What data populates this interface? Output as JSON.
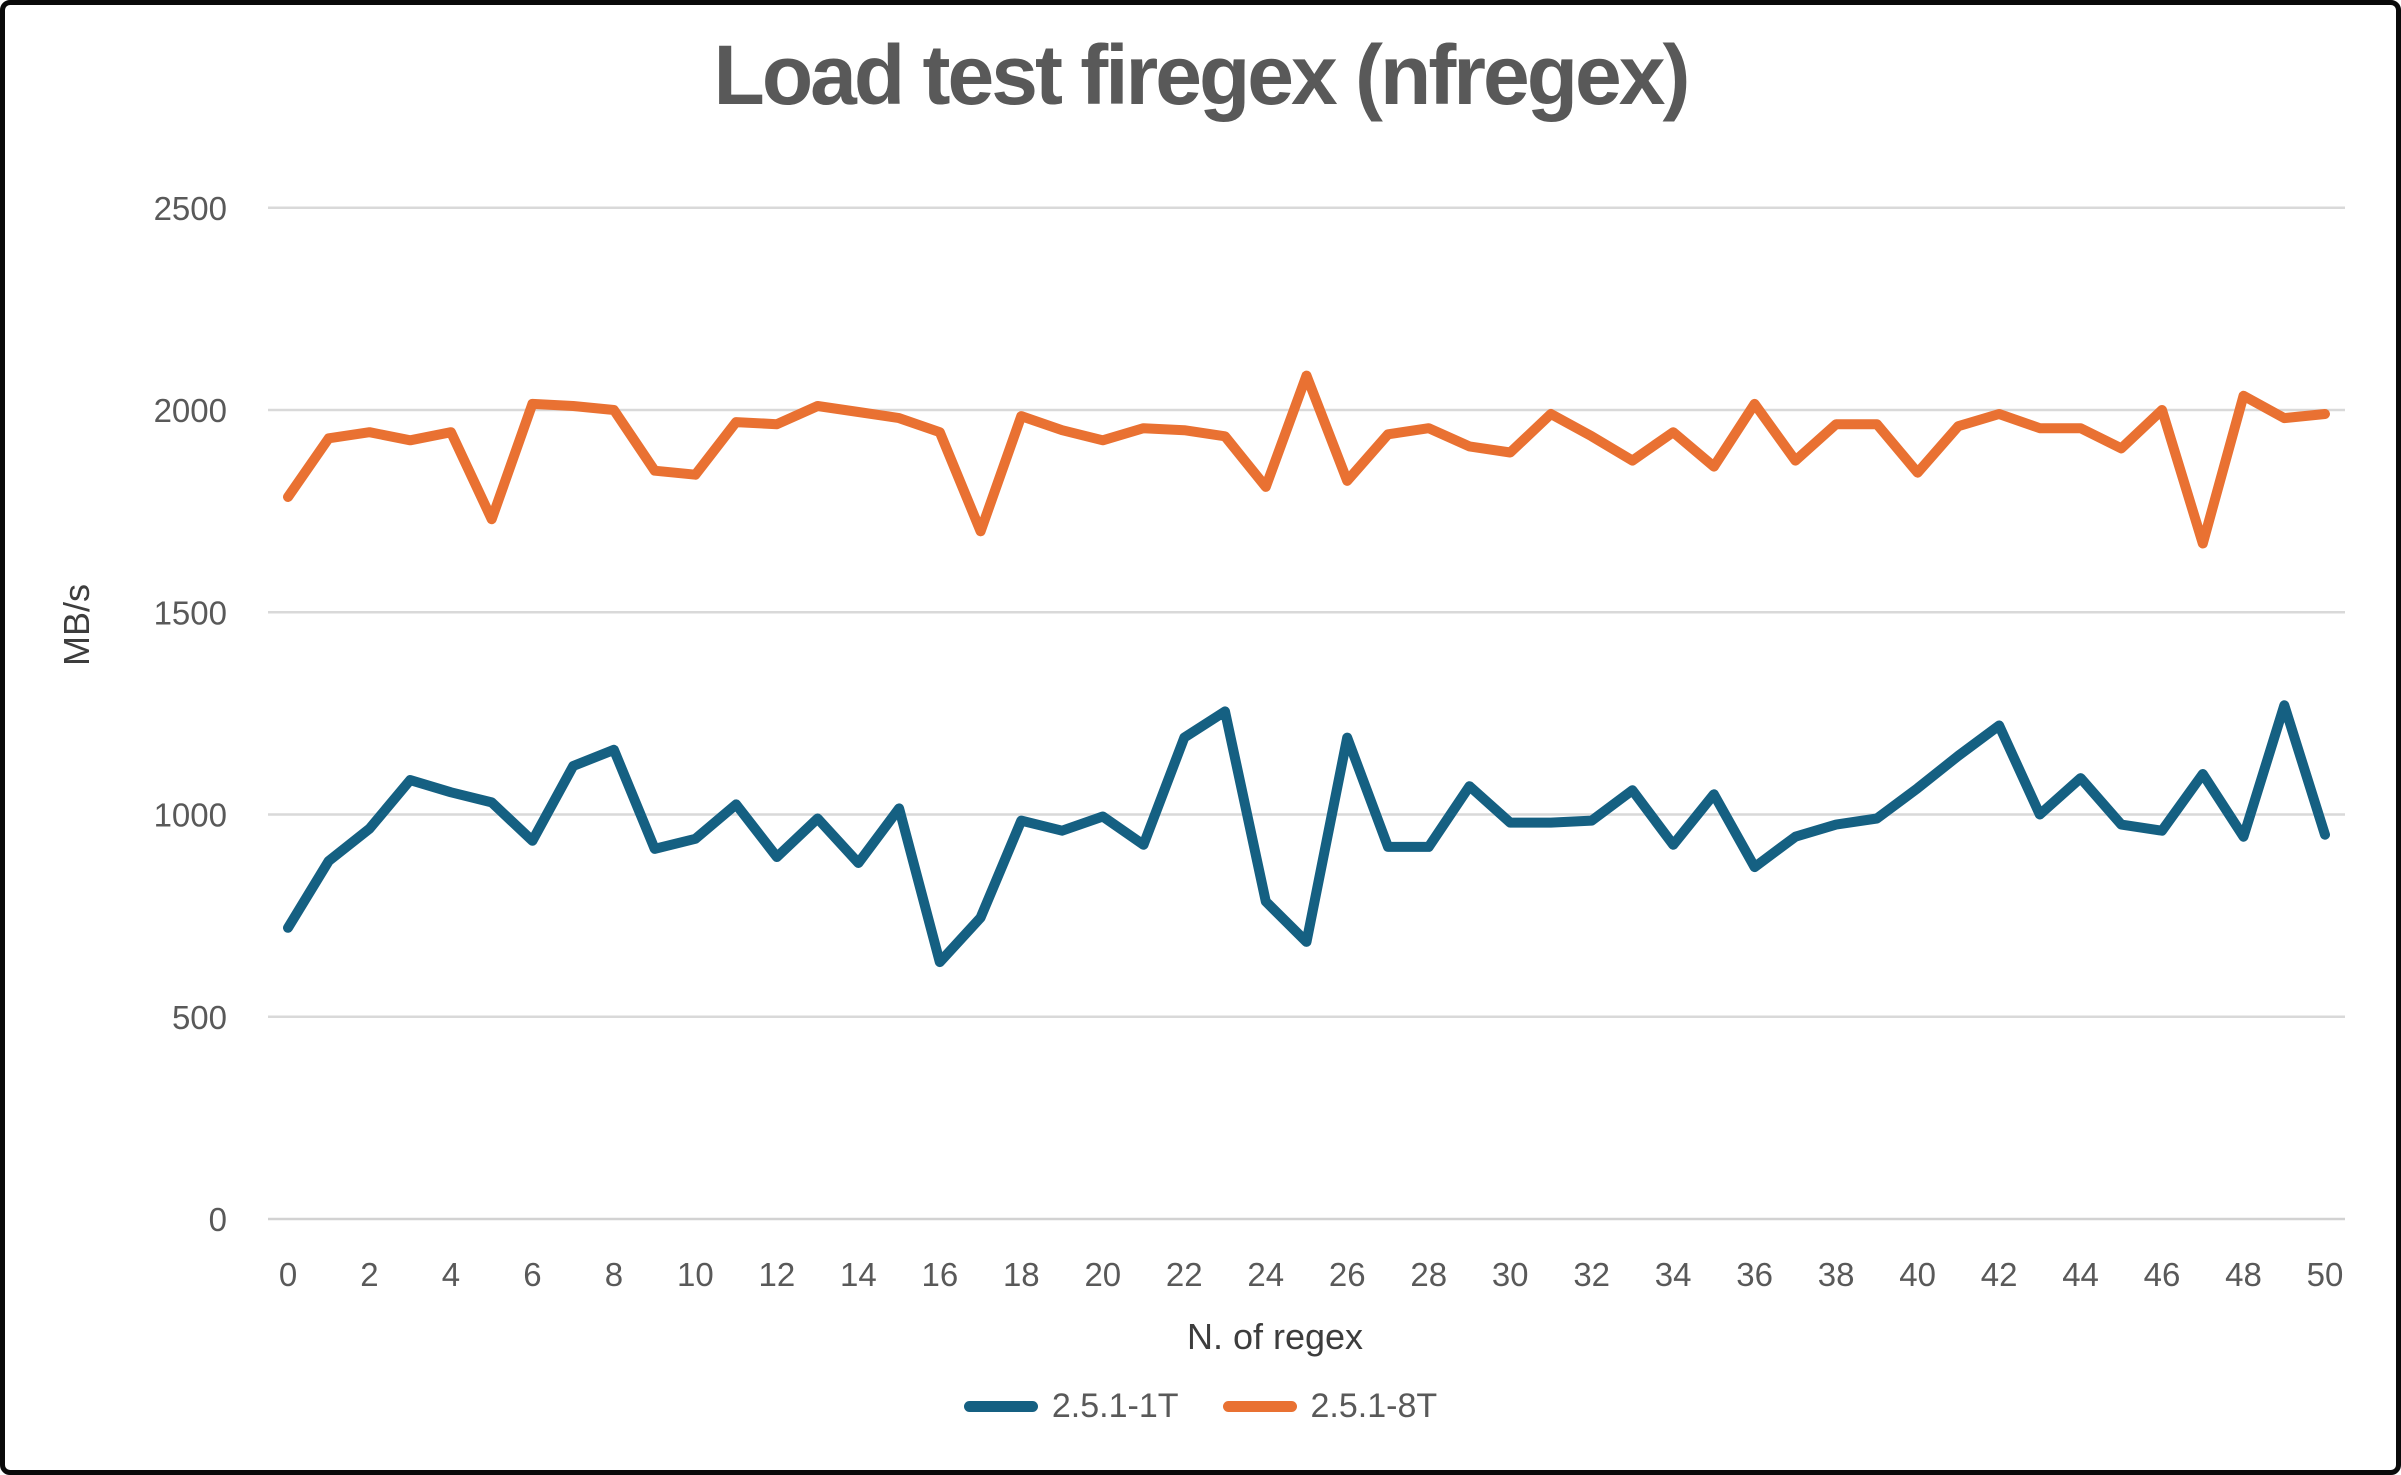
{
  "chart_data": {
    "type": "line",
    "title": "Load test firegex (nfregex)",
    "xlabel": "N. of regex",
    "ylabel": "MB/s",
    "x": [
      0,
      1,
      2,
      3,
      4,
      5,
      6,
      7,
      8,
      9,
      10,
      11,
      12,
      13,
      14,
      15,
      16,
      17,
      18,
      19,
      20,
      21,
      22,
      23,
      24,
      25,
      26,
      27,
      28,
      29,
      30,
      31,
      32,
      33,
      34,
      35,
      36,
      37,
      38,
      39,
      40,
      41,
      42,
      43,
      44,
      45,
      46,
      47,
      48,
      49,
      50
    ],
    "x_tick_labels": [
      "0",
      "2",
      "4",
      "6",
      "8",
      "10",
      "12",
      "14",
      "16",
      "18",
      "20",
      "22",
      "24",
      "26",
      "28",
      "30",
      "32",
      "34",
      "36",
      "38",
      "40",
      "42",
      "44",
      "46",
      "48",
      "50"
    ],
    "x_tick_values": [
      0,
      2,
      4,
      6,
      8,
      10,
      12,
      14,
      16,
      18,
      20,
      22,
      24,
      26,
      28,
      30,
      32,
      34,
      36,
      38,
      40,
      42,
      44,
      46,
      48,
      50
    ],
    "ylim": [
      0,
      2500
    ],
    "y_ticks": [
      0,
      500,
      1000,
      1500,
      2000,
      2500
    ],
    "y_tick_labels": [
      "0",
      "500",
      "1000",
      "1500",
      "2000",
      "2500"
    ],
    "grid": true,
    "legend_position": "bottom",
    "series": [
      {
        "name": "2.5.1-1T",
        "color": "#156082",
        "values": [
          720,
          885,
          965,
          1085,
          1055,
          1030,
          935,
          1120,
          1160,
          915,
          940,
          1025,
          895,
          990,
          880,
          1015,
          635,
          745,
          985,
          960,
          995,
          925,
          1190,
          1255,
          785,
          685,
          1190,
          920,
          920,
          1070,
          980,
          980,
          985,
          1060,
          925,
          1050,
          870,
          945,
          975,
          990,
          1065,
          1145,
          1220,
          1000,
          1090,
          975,
          960,
          1100,
          945,
          1270,
          950
        ]
      },
      {
        "name": "2.5.1-8T",
        "color": "#E97132",
        "values": [
          1785,
          1930,
          1945,
          1925,
          1945,
          1730,
          2015,
          2010,
          2000,
          1850,
          1840,
          1970,
          1965,
          2010,
          1995,
          1980,
          1945,
          1700,
          1985,
          1950,
          1925,
          1955,
          1950,
          1935,
          1810,
          2085,
          1825,
          1940,
          1955,
          1910,
          1895,
          1990,
          1935,
          1875,
          1945,
          1860,
          2015,
          1875,
          1965,
          1965,
          1845,
          1960,
          1990,
          1955,
          1955,
          1905,
          2000,
          1670,
          2035,
          1980,
          1990
        ]
      }
    ],
    "colors": {
      "gridline": "#d9d9d9",
      "axis_line": "#d2d2d2",
      "tick_label": "#595959",
      "title": "#595959"
    }
  }
}
